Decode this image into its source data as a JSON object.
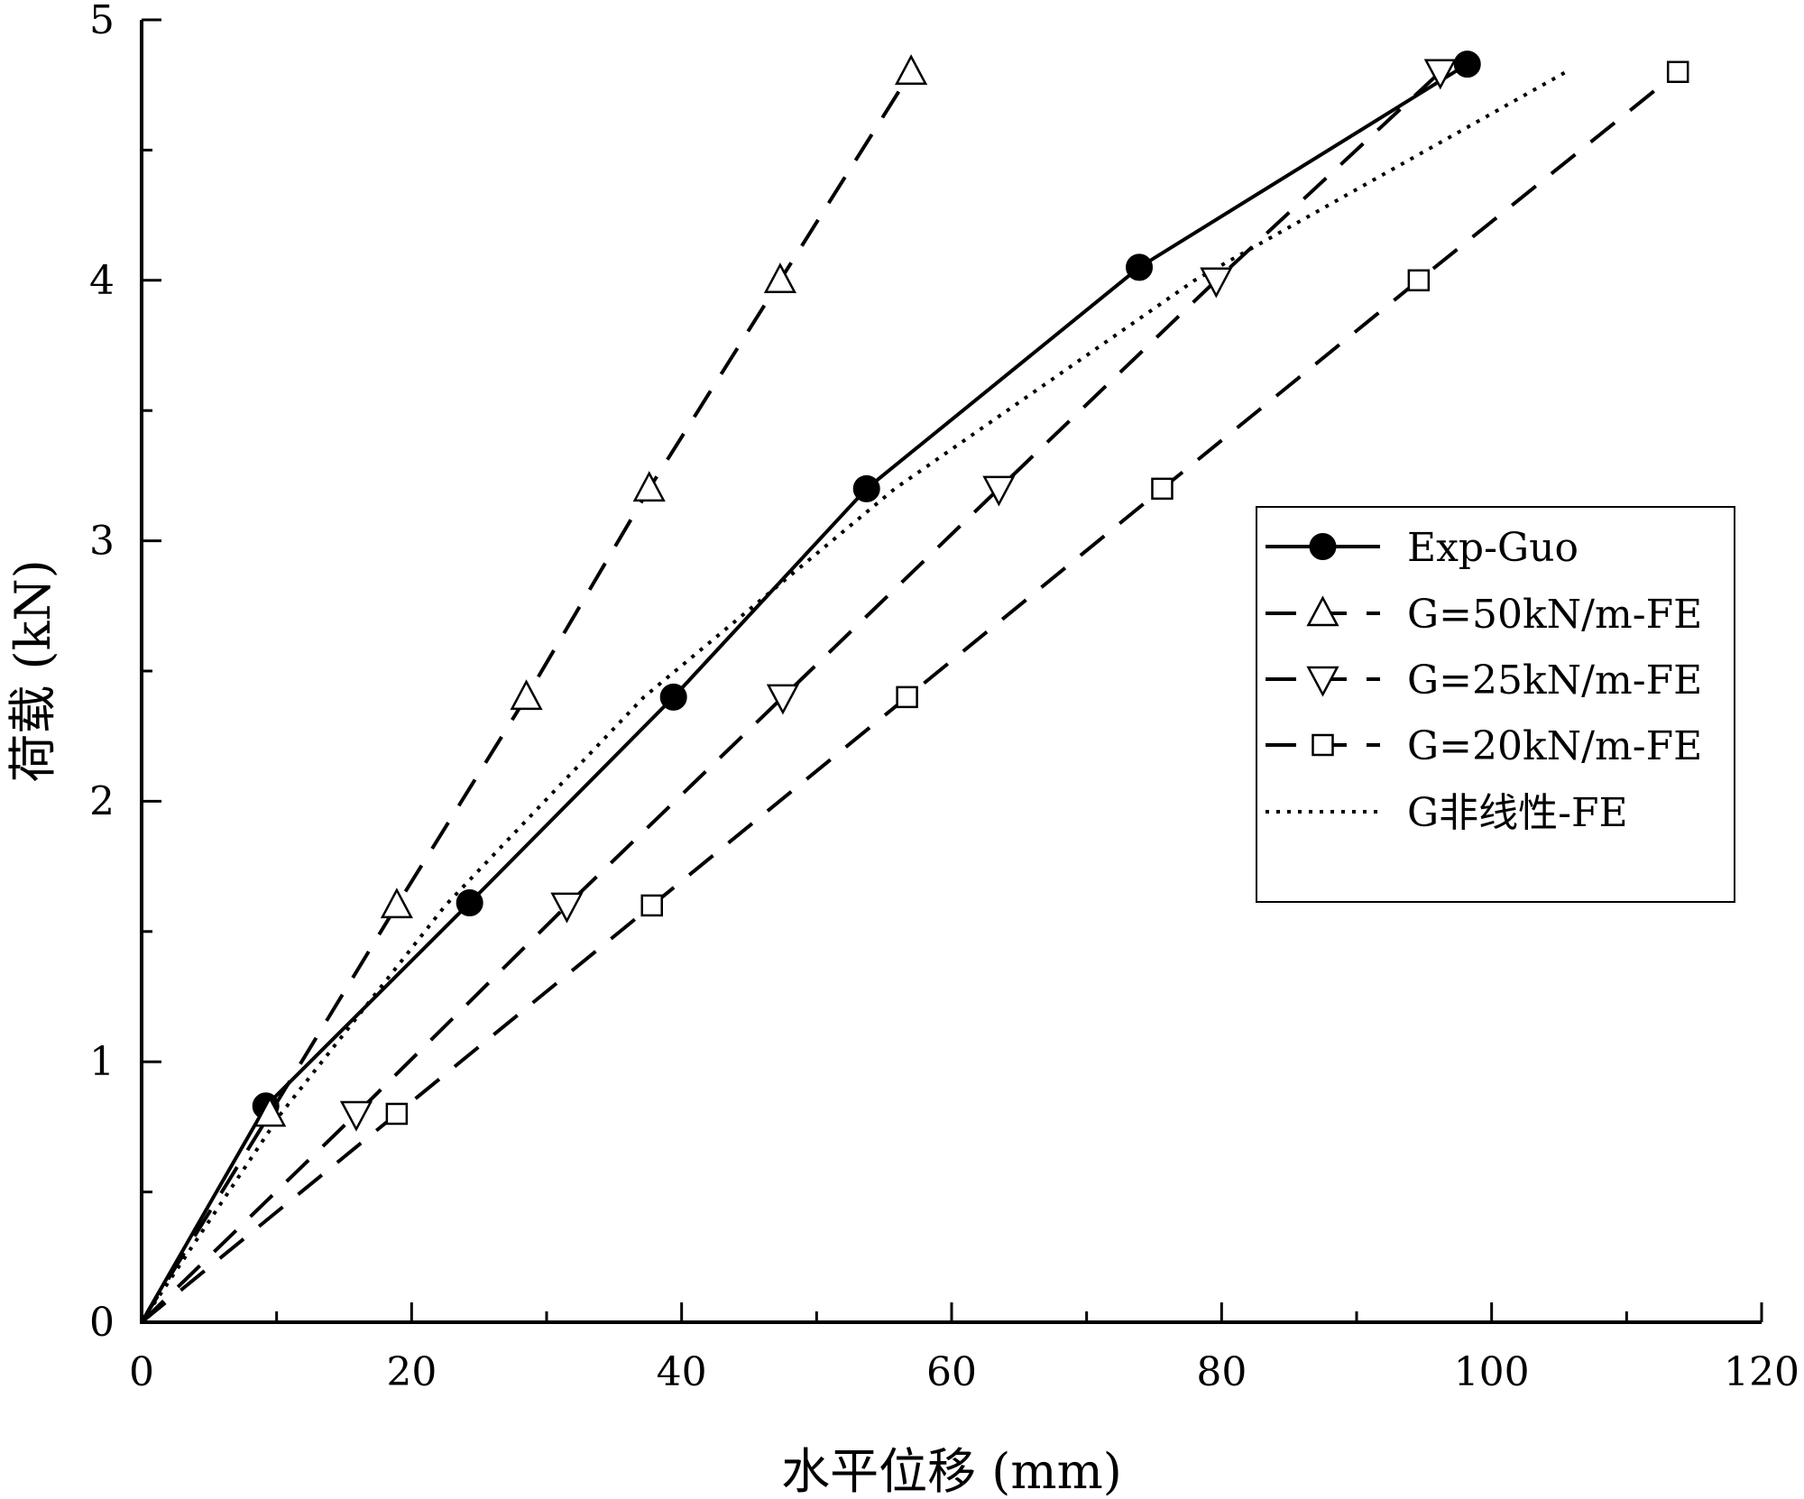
{
  "chart_data": {
    "type": "line",
    "title": "",
    "xlabel": "水平位移 (mm)",
    "ylabel": "荷载 (kN)",
    "xlim": [
      0,
      120
    ],
    "ylim": [
      0,
      5
    ],
    "xticks": [
      0,
      20,
      40,
      60,
      80,
      100,
      120
    ],
    "yticks": [
      0,
      1,
      2,
      3,
      4,
      5
    ],
    "xtick_labels": [
      "0",
      "20",
      "40",
      "60",
      "80",
      "100",
      "120"
    ],
    "ytick_labels": [
      "0",
      "1",
      "2",
      "3",
      "4",
      "5"
    ],
    "grid": false,
    "legend_position": "right",
    "series": [
      {
        "name": "Exp-Guo",
        "line": "solid",
        "marker": "filled-circle",
        "x": [
          0,
          9.2,
          24.3,
          39.4,
          53.7,
          73.9,
          98.2
        ],
        "y": [
          0,
          0.83,
          1.61,
          2.4,
          3.2,
          4.05,
          4.83
        ]
      },
      {
        "name": "G=50kN/m-FE",
        "line": "dashed",
        "marker": "triangle-up",
        "x": [
          0,
          9.5,
          18.9,
          28.5,
          37.6,
          47.3,
          57.0
        ],
        "y": [
          0,
          0.8,
          1.6,
          2.4,
          3.2,
          4.0,
          4.8
        ]
      },
      {
        "name": "G=25kN/m-FE",
        "line": "dashed",
        "marker": "triangle-down",
        "x": [
          0,
          15.9,
          31.5,
          47.5,
          63.5,
          79.6,
          96.2
        ],
        "y": [
          0,
          0.8,
          1.6,
          2.4,
          3.2,
          4.0,
          4.8
        ]
      },
      {
        "name": "G=20kN/m-FE",
        "line": "dashed",
        "marker": "open-square",
        "x": [
          0,
          18.9,
          37.8,
          56.7,
          75.6,
          94.6,
          113.8
        ],
        "y": [
          0,
          0.8,
          1.6,
          2.4,
          3.2,
          4.0,
          4.8
        ]
      },
      {
        "name": "G非线性-FE",
        "line": "dotted",
        "marker": "none",
        "x": [
          0,
          10.3,
          22.5,
          37.2,
          55.8,
          78.0,
          105.5
        ],
        "y": [
          0,
          0.8,
          1.6,
          2.4,
          3.2,
          4.0,
          4.8
        ]
      }
    ]
  }
}
